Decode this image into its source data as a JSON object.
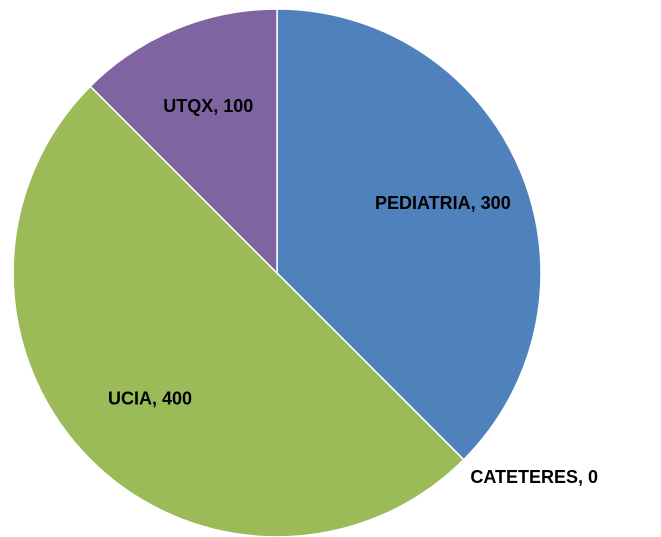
{
  "chart_data": {
    "type": "pie",
    "categories": [
      "PEDIATRIA",
      "CATETERES",
      "UCIA",
      "UTQX"
    ],
    "values": [
      300,
      0,
      400,
      100
    ],
    "value_labels": [
      "PEDIATRIA, 300",
      "CATETERES, 0",
      "UCIA, 400",
      "UTQX, 100"
    ],
    "colors": [
      "#4f81bd",
      "#c0504d",
      "#9bbb59",
      "#8064a2"
    ]
  }
}
